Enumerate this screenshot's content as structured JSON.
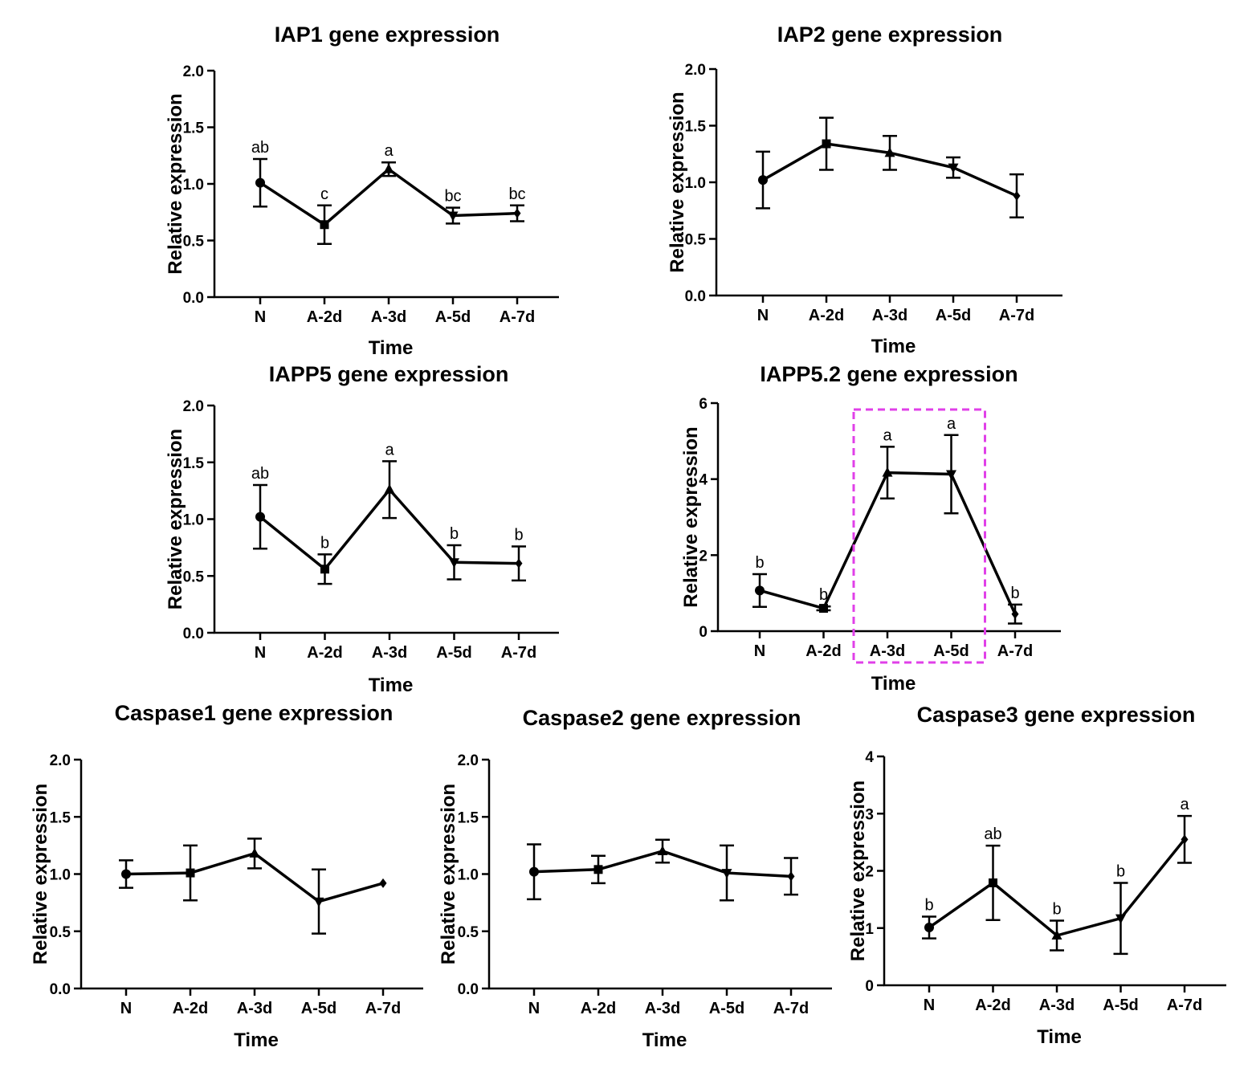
{
  "chart_data": [
    {
      "type": "line",
      "title": "IAP1 gene expression",
      "xlabel": "Time",
      "ylabel": "Relative expression",
      "categories": [
        "N",
        "A-2d",
        "A-3d",
        "A-5d",
        "A-7d"
      ],
      "ylim": [
        0,
        2.0
      ],
      "yticks": [
        "0.0",
        "0.5",
        "1.0",
        "1.5",
        "2.0"
      ],
      "values": [
        1.01,
        0.64,
        1.13,
        0.72,
        0.74
      ],
      "errors": [
        0.21,
        0.17,
        0.06,
        0.07,
        0.07
      ],
      "markers": [
        "circle",
        "square",
        "triangle-up",
        "triangle-down",
        "diamond"
      ],
      "labels": [
        "ab",
        "c",
        "a",
        "bc",
        "bc"
      ]
    },
    {
      "type": "line",
      "title": "IAP2 gene expression",
      "xlabel": "Time",
      "ylabel": "Relative expression",
      "categories": [
        "N",
        "A-2d",
        "A-3d",
        "A-5d",
        "A-7d"
      ],
      "ylim": [
        0,
        2.0
      ],
      "yticks": [
        "0.0",
        "0.5",
        "1.0",
        "1.5",
        "2.0"
      ],
      "values": [
        1.02,
        1.34,
        1.26,
        1.13,
        0.88
      ],
      "errors": [
        0.25,
        0.23,
        0.15,
        0.09,
        0.19
      ],
      "markers": [
        "circle",
        "square",
        "triangle-up",
        "triangle-down",
        "diamond"
      ],
      "labels": [
        "",
        "",
        "",
        "",
        ""
      ]
    },
    {
      "type": "line",
      "title": "IAPP5 gene expression",
      "xlabel": "Time",
      "ylabel": "Relative expression",
      "categories": [
        "N",
        "A-2d",
        "A-3d",
        "A-5d",
        "A-7d"
      ],
      "ylim": [
        0,
        2.0
      ],
      "yticks": [
        "0.0",
        "0.5",
        "1.0",
        "1.5",
        "2.0"
      ],
      "values": [
        1.02,
        0.56,
        1.26,
        0.62,
        0.61
      ],
      "errors": [
        0.28,
        0.13,
        0.25,
        0.15,
        0.15
      ],
      "markers": [
        "circle",
        "square",
        "triangle-up",
        "triangle-down",
        "diamond"
      ],
      "labels": [
        "ab",
        "b",
        "a",
        "b",
        "b"
      ]
    },
    {
      "type": "line",
      "title": "IAPP5.2 gene expression",
      "xlabel": "Time",
      "ylabel": "Relative expression",
      "categories": [
        "N",
        "A-2d",
        "A-3d",
        "A-5d",
        "A-7d"
      ],
      "ylim": [
        0,
        6
      ],
      "yticks": [
        "0",
        "2",
        "4",
        "6"
      ],
      "values": [
        1.07,
        0.6,
        4.17,
        4.13,
        0.45
      ],
      "errors": [
        0.43,
        0.05,
        0.68,
        1.03,
        0.25
      ],
      "markers": [
        "circle",
        "square",
        "triangle-up",
        "triangle-down",
        "diamond"
      ],
      "labels": [
        "b",
        "b",
        "a",
        "a",
        "b"
      ],
      "highlight": {
        "from": "A-3d",
        "to": "A-5d",
        "color": "#e040e8"
      }
    },
    {
      "type": "line",
      "title": "Caspase1 gene expression",
      "xlabel": "Time",
      "ylabel": "Relative expression",
      "categories": [
        "N",
        "A-2d",
        "A-3d",
        "A-5d",
        "A-7d"
      ],
      "ylim": [
        0,
        2.0
      ],
      "yticks": [
        "0.0",
        "0.5",
        "1.0",
        "1.5",
        "2.0"
      ],
      "values": [
        1.0,
        1.01,
        1.18,
        0.76,
        0.92
      ],
      "errors": [
        0.12,
        0.24,
        0.13,
        0.28,
        0.0
      ],
      "markers": [
        "circle",
        "square",
        "triangle-up",
        "triangle-down",
        "diamond"
      ],
      "labels": [
        "",
        "",
        "",
        "",
        ""
      ]
    },
    {
      "type": "line",
      "title": "Caspase2 gene expression",
      "xlabel": "Time",
      "ylabel": "Relative expression",
      "categories": [
        "N",
        "A-2d",
        "A-3d",
        "A-5d",
        "A-7d"
      ],
      "ylim": [
        0,
        2.0
      ],
      "yticks": [
        "0.0",
        "0.5",
        "1.0",
        "1.5",
        "2.0"
      ],
      "values": [
        1.02,
        1.04,
        1.2,
        1.01,
        0.98
      ],
      "errors": [
        0.24,
        0.12,
        0.1,
        0.24,
        0.16
      ],
      "markers": [
        "circle",
        "square",
        "triangle-up",
        "triangle-down",
        "diamond"
      ],
      "labels": [
        "",
        "",
        "",
        "",
        ""
      ]
    },
    {
      "type": "line",
      "title": "Caspase3 gene expression",
      "xlabel": "Time",
      "ylabel": "Relative expression",
      "categories": [
        "N",
        "A-2d",
        "A-3d",
        "A-5d",
        "A-7d"
      ],
      "ylim": [
        0,
        4
      ],
      "yticks": [
        "0",
        "1",
        "2",
        "3",
        "4"
      ],
      "values": [
        1.01,
        1.79,
        0.87,
        1.17,
        2.55
      ],
      "errors": [
        0.19,
        0.65,
        0.26,
        0.62,
        0.41
      ],
      "markers": [
        "circle",
        "square",
        "triangle-up",
        "triangle-down",
        "diamond"
      ],
      "labels": [
        "b",
        "ab",
        "b",
        "b",
        "a"
      ]
    }
  ]
}
